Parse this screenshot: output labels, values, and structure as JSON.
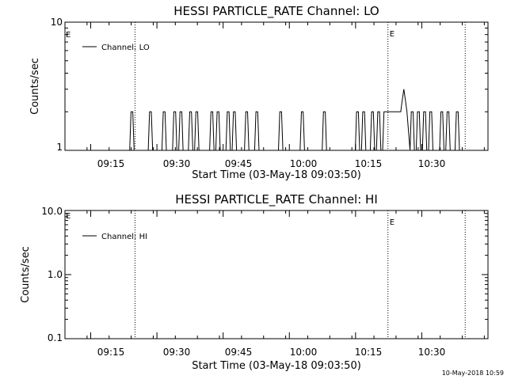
{
  "chart_data": [
    {
      "type": "line",
      "title": "HESSI PARTICLE_RATE Channel: LO",
      "xlabel": "Start Time (03-May-18 09:03:50)",
      "ylabel": "Counts/sec",
      "yscale": "log",
      "ylim": [
        1,
        10
      ],
      "ytick_values": [
        1,
        10
      ],
      "ytick_labels": [
        "1",
        "10"
      ],
      "xlim": [
        5.333,
        101.167
      ],
      "xtick_values": [
        11.167,
        26.167,
        41.167,
        56.167,
        71.167,
        86.167
      ],
      "xtick_labels": [
        "09:15",
        "09:30",
        "09:45",
        "10:00",
        "10:15",
        "10:30"
      ],
      "markers": [
        {
          "x": 21.2,
          "label": ""
        },
        {
          "x": 78.5,
          "label": "E"
        },
        {
          "x": 96.0,
          "label": ""
        }
      ],
      "left_marker_label": "E",
      "legend": {
        "label": "Channel: LO",
        "position": "top-left"
      },
      "series": [
        {
          "name": "Channel: LO",
          "x": [
            10.3,
            20.0,
            20.3,
            20.7,
            21.0,
            24.2,
            24.5,
            24.9,
            25.2,
            27.3,
            27.6,
            28.0,
            28.3,
            29.7,
            30.0,
            30.4,
            30.7,
            31.1,
            31.4,
            31.8,
            32.1,
            33.3,
            33.6,
            34.0,
            34.3,
            34.7,
            35.0,
            35.4,
            35.7,
            38.1,
            38.4,
            38.8,
            39.1,
            39.5,
            39.8,
            40.2,
            40.5,
            41.8,
            42.1,
            42.5,
            42.8,
            43.2,
            43.5,
            43.9,
            44.2,
            46.0,
            46.3,
            46.7,
            47.0,
            48.3,
            48.6,
            49.0,
            49.3,
            53.7,
            54.0,
            54.4,
            54.7,
            58.6,
            58.9,
            59.3,
            59.6,
            63.6,
            63.9,
            64.3,
            64.6,
            71.1,
            71.4,
            71.8,
            72.1,
            72.5,
            72.8,
            73.2,
            73.5,
            74.5,
            74.8,
            75.2,
            75.5,
            75.9,
            76.2,
            76.6,
            76.9,
            77.3,
            77.6,
            78.0,
            79.6,
            79.9,
            80.3,
            80.6,
            81.4,
            81.7,
            82.1,
            82.5,
            82.8,
            83.5,
            83.8,
            84.2,
            84.5,
            84.9,
            85.2,
            85.6,
            85.9,
            86.3,
            86.6,
            87.0,
            87.3,
            87.7,
            88.0,
            88.4,
            88.7,
            90.2,
            90.5,
            90.9,
            91.2,
            91.6,
            91.9,
            92.3,
            92.6,
            93.7,
            94.0,
            94.4,
            94.7
          ],
          "y": [
            1,
            1,
            2,
            2,
            1,
            1,
            2,
            2,
            1,
            1,
            2,
            2,
            1,
            1,
            2,
            2,
            1,
            1,
            2,
            2,
            1,
            1,
            2,
            2,
            1,
            1,
            2,
            2,
            1,
            1,
            2,
            2,
            1,
            1,
            2,
            2,
            1,
            1,
            2,
            2,
            1,
            1,
            2,
            2,
            1,
            1,
            2,
            2,
            1,
            1,
            2,
            2,
            1,
            1,
            2,
            2,
            1,
            1,
            2,
            2,
            1,
            1,
            2,
            2,
            1,
            1,
            2,
            2,
            1,
            1,
            2,
            2,
            1,
            1,
            2,
            2,
            1,
            1,
            2,
            2,
            1,
            1,
            2,
            2,
            2,
            2,
            2,
            2,
            2,
            2.4,
            3,
            2.4,
            2,
            1,
            2,
            2,
            1,
            1,
            2,
            2,
            1,
            1,
            2,
            2,
            1,
            1,
            2,
            2,
            1,
            1,
            2,
            2,
            1,
            1,
            2,
            2,
            1,
            1,
            2,
            2,
            1
          ]
        }
      ]
    },
    {
      "type": "line",
      "title": "HESSI PARTICLE_RATE Channel: HI",
      "xlabel": "Start Time (03-May-18 09:03:50)",
      "ylabel": "Counts/sec",
      "yscale": "log",
      "ylim": [
        0.1,
        10
      ],
      "ytick_values": [
        0.1,
        1,
        10
      ],
      "ytick_labels": [
        "0.1",
        "1.0",
        "10.0"
      ],
      "xlim": [
        5.333,
        101.167
      ],
      "xtick_values": [
        11.167,
        26.167,
        41.167,
        56.167,
        71.167,
        86.167
      ],
      "xtick_labels": [
        "09:15",
        "09:30",
        "09:45",
        "10:00",
        "10:15",
        "10:30"
      ],
      "markers": [
        {
          "x": 21.2,
          "label": ""
        },
        {
          "x": 78.5,
          "label": "E"
        },
        {
          "x": 96.0,
          "label": ""
        }
      ],
      "left_marker_label": "E",
      "legend": {
        "label": "Channel: HI",
        "position": "top-left"
      },
      "series": [
        {
          "name": "Channel: HI",
          "x": [],
          "y": []
        }
      ]
    }
  ],
  "footer": {
    "timestamp": "10-May-2018 10:59"
  }
}
